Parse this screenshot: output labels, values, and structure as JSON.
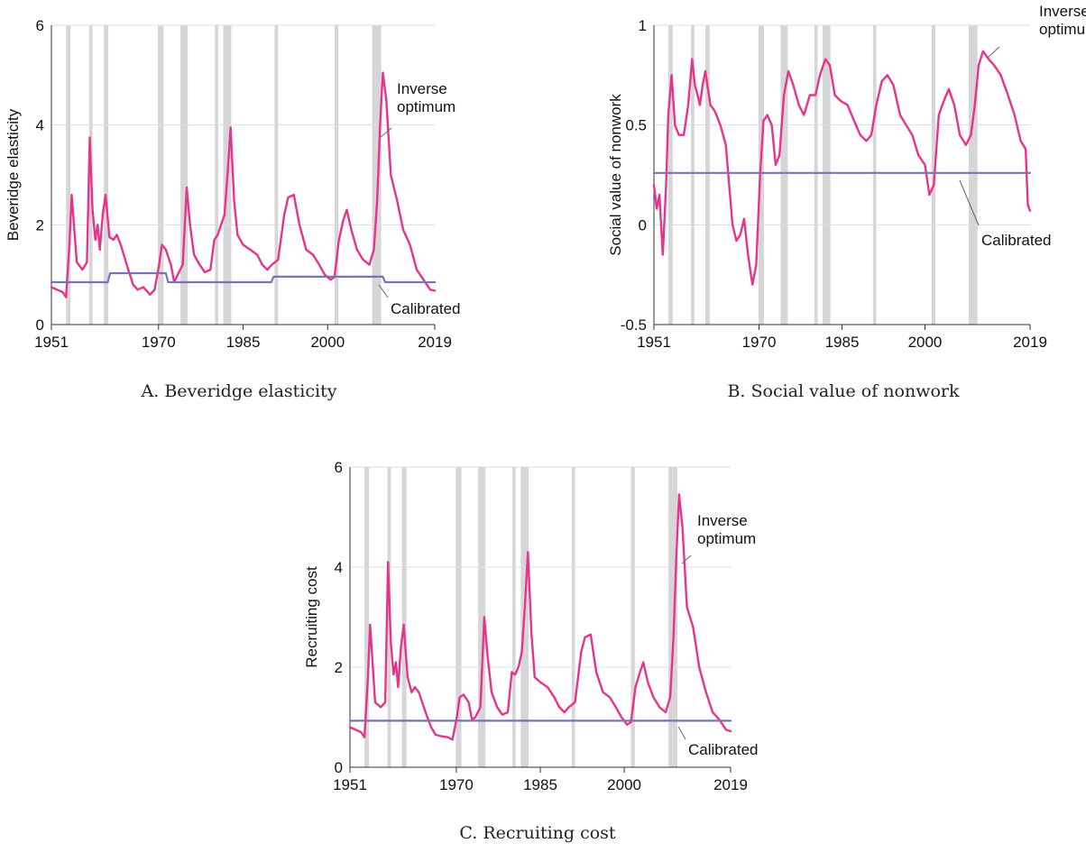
{
  "colors": {
    "inverse": "#e8338e",
    "calibrated": "#7a72b8",
    "recession": "#d6d6d6",
    "grid": "#dddddd",
    "axis": "#333333"
  },
  "recessions": [
    [
      1953.6,
      1954.4
    ],
    [
      1957.7,
      1958.3
    ],
    [
      1960.3,
      1961.1
    ],
    [
      1969.9,
      1970.9
    ],
    [
      1973.9,
      1975.2
    ],
    [
      1980.0,
      1980.6
    ],
    [
      1981.5,
      1982.9
    ],
    [
      1990.6,
      1991.2
    ],
    [
      2001.2,
      2001.9
    ],
    [
      2007.9,
      2009.5
    ]
  ],
  "chart_data": [
    {
      "type": "line",
      "panel": "A",
      "caption": "A. Beveridge elasticity",
      "ylabel": "Beveridge elasticity",
      "xlim": [
        1951,
        2019
      ],
      "ylim": [
        0,
        6
      ],
      "xticks": [
        "1951",
        "1970",
        "1985",
        "2000",
        "2019"
      ],
      "yticks": [
        "0",
        "2",
        "4",
        "6"
      ],
      "grid": true,
      "series": [
        {
          "name": "Inverse optimum",
          "x": [
            1951,
            1952,
            1953,
            1953.6,
            1954.2,
            1954.6,
            1955.5,
            1956.5,
            1957.3,
            1957.8,
            1958.3,
            1958.8,
            1959.2,
            1959.6,
            1960.1,
            1960.6,
            1961.3,
            1962,
            1962.6,
            1963.3,
            1964.5,
            1965.5,
            1966.3,
            1967.3,
            1968.5,
            1969.3,
            1970.1,
            1970.6,
            1971.3,
            1972.2,
            1972.8,
            1973.4,
            1974.3,
            1975,
            1975.6,
            1976.3,
            1977.3,
            1978.2,
            1979.2,
            1979.9,
            1980.5,
            1981.1,
            1981.7,
            1982.3,
            1982.8,
            1983.4,
            1984,
            1985,
            1986.3,
            1987.5,
            1988.4,
            1989.3,
            1990.1,
            1991.2,
            1992.3,
            1993,
            1994,
            1995,
            1996.2,
            1997.4,
            1998.5,
            1999.5,
            2000.5,
            2001.2,
            2002,
            2002.8,
            2003.4,
            2004.2,
            2005.2,
            2006.3,
            2007.4,
            2008.2,
            2008.8,
            2009.3,
            2009.8,
            2010.4,
            2011.2,
            2012.3,
            2013.4,
            2014.6,
            2015.8,
            2017,
            2018.2,
            2019
          ],
          "y": [
            0.75,
            0.7,
            0.65,
            0.55,
            1.6,
            2.6,
            1.25,
            1.1,
            1.25,
            3.75,
            2.3,
            1.7,
            2.0,
            1.5,
            2.2,
            2.6,
            1.75,
            1.7,
            1.8,
            1.6,
            1.15,
            0.8,
            0.7,
            0.75,
            0.6,
            0.7,
            1.2,
            1.6,
            1.5,
            1.2,
            0.85,
            1.0,
            1.2,
            2.75,
            2.0,
            1.4,
            1.2,
            1.05,
            1.1,
            1.7,
            1.8,
            2.0,
            2.2,
            3.1,
            3.95,
            2.5,
            1.8,
            1.6,
            1.5,
            1.4,
            1.2,
            1.1,
            1.2,
            1.3,
            2.2,
            2.55,
            2.6,
            2.0,
            1.5,
            1.4,
            1.2,
            1.0,
            0.9,
            0.95,
            1.7,
            2.1,
            2.3,
            1.9,
            1.5,
            1.3,
            1.2,
            1.5,
            2.5,
            4.0,
            5.05,
            4.5,
            3.0,
            2.5,
            1.9,
            1.6,
            1.1,
            0.9,
            0.7,
            0.68
          ]
        },
        {
          "name": "Calibrated",
          "x": [
            1951,
            1961,
            1961.4,
            1971.3,
            1971.7,
            1990,
            1990.4,
            2009.8,
            2010.2,
            2019
          ],
          "y": [
            0.85,
            0.85,
            1.03,
            1.03,
            0.85,
            0.85,
            0.96,
            0.96,
            0.85,
            0.85
          ]
        }
      ],
      "annotations": {
        "inverse": [
          "Inverse",
          "optimum"
        ],
        "calibrated": [
          "Calibrated"
        ]
      }
    },
    {
      "type": "line",
      "panel": "B",
      "caption": "B. Social value of nonwork",
      "ylabel": "Social value of nonwork",
      "xlim": [
        1951,
        2019
      ],
      "ylim": [
        -0.5,
        1
      ],
      "xticks": [
        "1951",
        "1970",
        "1985",
        "2000",
        "2019"
      ],
      "yticks": [
        "-0.5",
        "0",
        "0.5",
        "1"
      ],
      "grid": true,
      "series": [
        {
          "name": "Inverse optimum",
          "x": [
            1951,
            1951.5,
            1952,
            1952.6,
            1953.2,
            1953.6,
            1954.2,
            1954.8,
            1955.5,
            1956.4,
            1957.2,
            1957.9,
            1958.4,
            1958.9,
            1959.3,
            1959.8,
            1960.3,
            1961.2,
            1962,
            1963,
            1964,
            1965.2,
            1965.9,
            1966.6,
            1967.3,
            1968,
            1968.8,
            1969.5,
            1970.2,
            1970.8,
            1971.5,
            1972.3,
            1973,
            1973.7,
            1974.5,
            1975.3,
            1976.2,
            1977.2,
            1978.1,
            1979.2,
            1980.2,
            1981,
            1982,
            1982.8,
            1983.7,
            1984.8,
            1986,
            1987.2,
            1988.3,
            1989.4,
            1990.3,
            1991.2,
            1992.2,
            1993.2,
            1994.3,
            1995.5,
            1996.6,
            1997.7,
            1998.8,
            2000,
            2000.8,
            2001.6,
            2002.5,
            2003.4,
            2004.3,
            2005.3,
            2006.3,
            2007.4,
            2008.3,
            2009,
            2009.7,
            2010.5,
            2011.5,
            2012.5,
            2013.7,
            2015,
            2016.2,
            2017.3,
            2018.2,
            2018.6,
            2019
          ],
          "y": [
            0.2,
            0.08,
            0.15,
            -0.15,
            0.2,
            0.55,
            0.75,
            0.5,
            0.45,
            0.45,
            0.6,
            0.83,
            0.7,
            0.65,
            0.6,
            0.7,
            0.77,
            0.6,
            0.57,
            0.5,
            0.4,
            0.0,
            -0.08,
            -0.05,
            0.03,
            -0.15,
            -0.3,
            -0.2,
            0.25,
            0.52,
            0.55,
            0.5,
            0.3,
            0.35,
            0.65,
            0.77,
            0.7,
            0.6,
            0.55,
            0.65,
            0.65,
            0.75,
            0.83,
            0.8,
            0.65,
            0.62,
            0.6,
            0.52,
            0.45,
            0.42,
            0.45,
            0.6,
            0.72,
            0.75,
            0.7,
            0.55,
            0.5,
            0.45,
            0.35,
            0.3,
            0.15,
            0.2,
            0.55,
            0.62,
            0.68,
            0.6,
            0.45,
            0.4,
            0.45,
            0.6,
            0.8,
            0.87,
            0.83,
            0.8,
            0.75,
            0.65,
            0.55,
            0.42,
            0.38,
            0.1,
            0.07
          ]
        },
        {
          "name": "Calibrated",
          "x": [
            1951,
            2019
          ],
          "y": [
            0.26,
            0.26
          ]
        }
      ],
      "annotations": {
        "inverse": [
          "Inverse",
          "optimum"
        ],
        "calibrated": [
          "Calibrated"
        ]
      }
    },
    {
      "type": "line",
      "panel": "C",
      "caption": "C. Recruiting cost",
      "ylabel": "Recruiting cost",
      "xlim": [
        1951,
        2019
      ],
      "ylim": [
        0,
        6
      ],
      "xticks": [
        "1951",
        "1970",
        "1985",
        "2000",
        "2019"
      ],
      "yticks": [
        "0",
        "2",
        "4",
        "6"
      ],
      "grid": true,
      "series": [
        {
          "name": "Inverse optimum",
          "x": [
            1951,
            1952,
            1953,
            1953.6,
            1954.2,
            1954.6,
            1955.5,
            1956.5,
            1957.3,
            1957.8,
            1958.3,
            1958.8,
            1959.2,
            1959.6,
            1960.1,
            1960.6,
            1961.3,
            1962,
            1962.6,
            1963.3,
            1964.5,
            1965.5,
            1966.3,
            1967.3,
            1968.5,
            1969.3,
            1970.1,
            1970.6,
            1971.3,
            1972.2,
            1972.8,
            1973.4,
            1974.3,
            1975,
            1975.6,
            1976.3,
            1977.3,
            1978.2,
            1979.2,
            1979.9,
            1980.5,
            1981.1,
            1981.7,
            1982.3,
            1982.8,
            1983.4,
            1984,
            1985,
            1986.3,
            1987.5,
            1988.4,
            1989.3,
            1990.1,
            1991.2,
            1992.3,
            1993,
            1994,
            1995,
            1996.2,
            1997.4,
            1998.5,
            1999.5,
            2000.5,
            2001.2,
            2002,
            2002.8,
            2003.4,
            2004.2,
            2005.2,
            2006.3,
            2007.4,
            2008.2,
            2008.8,
            2009.3,
            2009.8,
            2010.4,
            2011.2,
            2012.3,
            2013.4,
            2014.6,
            2015.8,
            2017,
            2018.2,
            2019
          ],
          "y": [
            0.8,
            0.75,
            0.7,
            0.6,
            1.8,
            2.85,
            1.3,
            1.2,
            1.3,
            4.1,
            2.5,
            1.85,
            2.1,
            1.6,
            2.4,
            2.85,
            1.8,
            1.5,
            1.6,
            1.5,
            1.1,
            0.8,
            0.65,
            0.62,
            0.6,
            0.55,
            1.0,
            1.4,
            1.45,
            1.3,
            0.95,
            1.0,
            1.2,
            3.0,
            2.2,
            1.5,
            1.2,
            1.05,
            1.1,
            1.9,
            1.85,
            2.0,
            2.3,
            3.3,
            4.3,
            2.7,
            1.8,
            1.7,
            1.6,
            1.4,
            1.2,
            1.1,
            1.2,
            1.3,
            2.3,
            2.6,
            2.65,
            1.9,
            1.5,
            1.4,
            1.2,
            1.0,
            0.85,
            0.9,
            1.6,
            1.9,
            2.1,
            1.7,
            1.4,
            1.2,
            1.1,
            1.4,
            2.6,
            4.2,
            5.45,
            4.8,
            3.2,
            2.8,
            2.0,
            1.5,
            1.1,
            0.95,
            0.75,
            0.72
          ]
        },
        {
          "name": "Calibrated",
          "x": [
            1951,
            2019
          ],
          "y": [
            0.93,
            0.93
          ]
        }
      ],
      "annotations": {
        "inverse": [
          "Inverse",
          "optimum"
        ],
        "calibrated": [
          "Calibrated"
        ]
      }
    }
  ]
}
